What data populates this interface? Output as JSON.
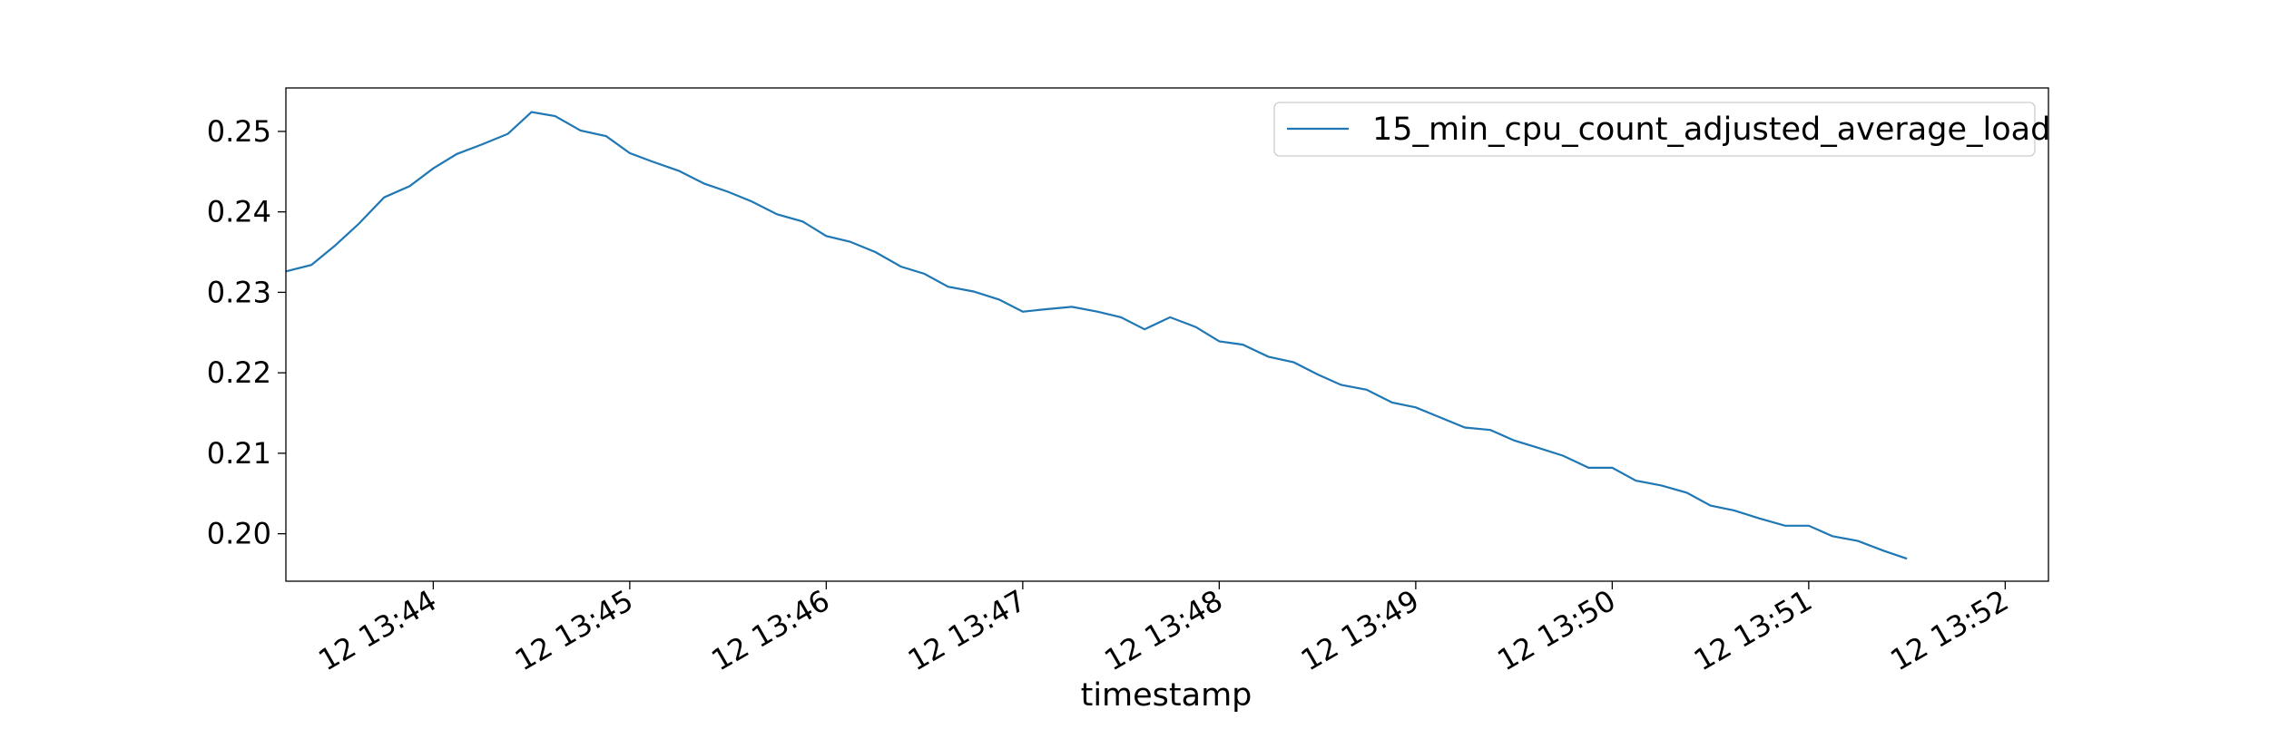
{
  "chart_data": {
    "type": "line",
    "xlabel": "timestamp",
    "ylabel": "",
    "legend_position": "upper right",
    "grid": false,
    "colors": {
      "series": "#1f77b4",
      "axes": "#000000",
      "legend_border": "#cccccc"
    },
    "x_ticks": [
      "12 13:44",
      "12 13:45",
      "12 13:46",
      "12 13:47",
      "12 13:48",
      "12 13:49",
      "12 13:50",
      "12 13:51",
      "12 13:52"
    ],
    "x_tick_minutes": [
      44,
      45,
      46,
      47,
      48,
      49,
      50,
      51,
      52
    ],
    "x_range_minutes": [
      43.25,
      52.22
    ],
    "y_ticks": [
      "0.20",
      "0.21",
      "0.22",
      "0.23",
      "0.24",
      "0.25"
    ],
    "y_tick_values": [
      0.2,
      0.21,
      0.22,
      0.23,
      0.24,
      0.25
    ],
    "ylim": [
      0.1941,
      0.2554
    ],
    "series": [
      {
        "name": "15_min_cpu_count_adjusted_average_load",
        "color": "#1f77b4",
        "points": [
          [
            43.25,
            0.2326
          ],
          [
            43.38,
            0.2334
          ],
          [
            43.5,
            0.2358
          ],
          [
            43.62,
            0.2385
          ],
          [
            43.75,
            0.2418
          ],
          [
            43.88,
            0.2432
          ],
          [
            44.0,
            0.2454
          ],
          [
            44.12,
            0.2472
          ],
          [
            44.25,
            0.2484
          ],
          [
            44.38,
            0.2497
          ],
          [
            44.5,
            0.2524
          ],
          [
            44.62,
            0.2519
          ],
          [
            44.75,
            0.2501
          ],
          [
            44.88,
            0.2494
          ],
          [
            45.0,
            0.2473
          ],
          [
            45.12,
            0.2462
          ],
          [
            45.25,
            0.2451
          ],
          [
            45.38,
            0.2435
          ],
          [
            45.5,
            0.2425
          ],
          [
            45.62,
            0.2413
          ],
          [
            45.75,
            0.2397
          ],
          [
            45.88,
            0.2388
          ],
          [
            46.0,
            0.237
          ],
          [
            46.12,
            0.2363
          ],
          [
            46.25,
            0.235
          ],
          [
            46.38,
            0.2332
          ],
          [
            46.5,
            0.2323
          ],
          [
            46.62,
            0.2307
          ],
          [
            46.75,
            0.2301
          ],
          [
            46.88,
            0.2291
          ],
          [
            47.0,
            0.2276
          ],
          [
            47.12,
            0.2279
          ],
          [
            47.25,
            0.2282
          ],
          [
            47.38,
            0.2276
          ],
          [
            47.5,
            0.2269
          ],
          [
            47.62,
            0.2254
          ],
          [
            47.75,
            0.2269
          ],
          [
            47.88,
            0.2257
          ],
          [
            48.0,
            0.2239
          ],
          [
            48.12,
            0.2235
          ],
          [
            48.25,
            0.222
          ],
          [
            48.38,
            0.2213
          ],
          [
            48.5,
            0.2198
          ],
          [
            48.62,
            0.2185
          ],
          [
            48.75,
            0.2179
          ],
          [
            48.88,
            0.2163
          ],
          [
            49.0,
            0.2157
          ],
          [
            49.12,
            0.2145
          ],
          [
            49.25,
            0.2132
          ],
          [
            49.38,
            0.2129
          ],
          [
            49.5,
            0.2116
          ],
          [
            49.62,
            0.2107
          ],
          [
            49.75,
            0.2097
          ],
          [
            49.88,
            0.2082
          ],
          [
            50.0,
            0.2082
          ],
          [
            50.12,
            0.2066
          ],
          [
            50.25,
            0.206
          ],
          [
            50.38,
            0.2051
          ],
          [
            50.5,
            0.2035
          ],
          [
            50.62,
            0.2029
          ],
          [
            50.75,
            0.2019
          ],
          [
            50.88,
            0.201
          ],
          [
            51.0,
            0.201
          ],
          [
            51.12,
            0.1997
          ],
          [
            51.25,
            0.1991
          ],
          [
            51.38,
            0.1979
          ],
          [
            51.5,
            0.1969
          ]
        ]
      }
    ]
  }
}
